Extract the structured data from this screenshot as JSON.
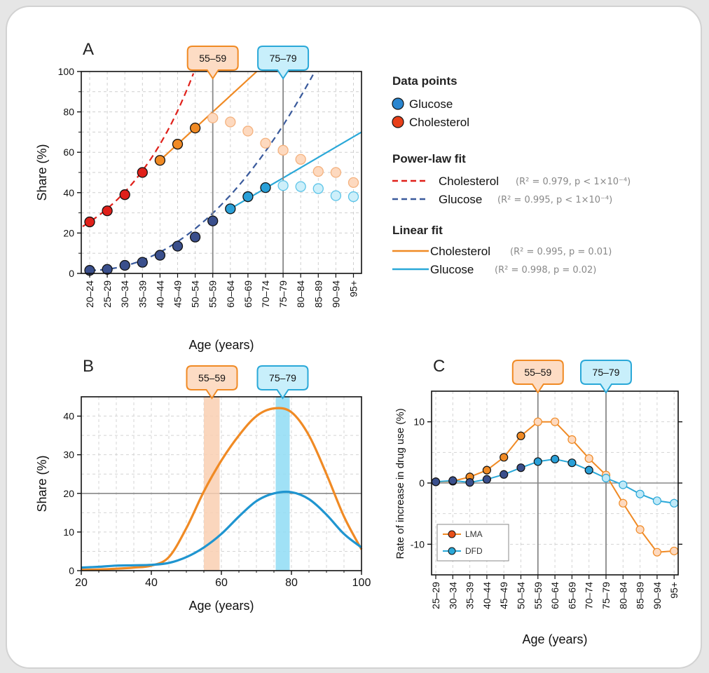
{
  "colors": {
    "glucose_dark": "#3a4f8c",
    "glucose_light": "#2aa8d8",
    "cholesterol_red": "#e0201a",
    "cholesterol_orange": "#f08a24",
    "callout_orange_fill": "#fddcc4",
    "callout_orange_stroke": "#f08a24",
    "callout_blue_fill": "#c8effb",
    "callout_blue_stroke": "#2aa8d8"
  },
  "legend": {
    "data_points_title": "Data points",
    "glucose": "Glucose",
    "cholesterol": "Cholesterol",
    "power_title": "Power-law fit",
    "linear_title": "Linear fit",
    "power_chol_stat": "(R² = 0.979, p < 1×10⁻⁴)",
    "power_gluc_stat": "(R² = 0.995, p < 1×10⁻⁴)",
    "linear_chol_stat": "(R² = 0.995, p = 0.01)",
    "linear_gluc_stat": "(R² = 0.998, p = 0.02)"
  },
  "chart_data": [
    {
      "panel": "A",
      "type": "scatter",
      "xlabel": "Age (years)",
      "ylabel": "Share (%)",
      "ylim": [
        0,
        100
      ],
      "yticks": [
        0,
        20,
        40,
        60,
        80,
        100
      ],
      "categories": [
        "20–24",
        "25–29",
        "30–34",
        "35–39",
        "40–44",
        "45–49",
        "50–54",
        "55–59",
        "60–64",
        "65–69",
        "70–74",
        "75–79",
        "80–84",
        "85–89",
        "90–94",
        "95+"
      ],
      "callouts": [
        "55–59",
        "75–79"
      ],
      "series": [
        {
          "name": "Cholesterol",
          "values": [
            25.5,
            31,
            39,
            50,
            56,
            64,
            72,
            77,
            75,
            70.5,
            64.5,
            61,
            56.5,
            50.5,
            50,
            45
          ]
        },
        {
          "name": "Glucose",
          "values": [
            1.5,
            2,
            4,
            5.5,
            9,
            13.5,
            18,
            26,
            32,
            38,
            42.5,
            43.5,
            43,
            42,
            38.5,
            38
          ]
        }
      ],
      "grid": true
    },
    {
      "panel": "B",
      "type": "line",
      "xlabel": "Age (years)",
      "ylabel": "Share (%)",
      "xlim": [
        20,
        100
      ],
      "ylim": [
        0,
        45
      ],
      "xticks": [
        20,
        40,
        60,
        80,
        100
      ],
      "yticks": [
        0,
        10,
        20,
        30,
        40
      ],
      "callouts": [
        "55–59",
        "75–79"
      ],
      "x": [
        20,
        25,
        30,
        35,
        40,
        45,
        50,
        55,
        60,
        65,
        70,
        75,
        80,
        85,
        90,
        95,
        100
      ],
      "series": [
        {
          "values": [
            0.2,
            0.3,
            0.5,
            0.8,
            1.3,
            3.5,
            11,
            20.5,
            28.5,
            35,
            40,
            42,
            41,
            35,
            25,
            14,
            5.5
          ]
        },
        {
          "values": [
            0.8,
            1,
            1.3,
            1.4,
            1.5,
            2,
            3.5,
            6,
            9.5,
            14,
            18,
            20,
            20.3,
            18.5,
            14.5,
            9.5,
            6
          ]
        }
      ],
      "grid": true
    },
    {
      "panel": "C",
      "type": "line",
      "xlabel": "Age (years)",
      "ylabel": "Rate of increase in drug use (%)",
      "ylim": [
        -15,
        15
      ],
      "yticks": [
        -10,
        0,
        10
      ],
      "categories": [
        "25–29",
        "30–34",
        "35–39",
        "40–44",
        "45–49",
        "50–54",
        "55–59",
        "60–64",
        "65–69",
        "70–74",
        "75–79",
        "80–84",
        "85–89",
        "90–94",
        "95+"
      ],
      "callouts": [
        "55–59",
        "75–79"
      ],
      "series": [
        {
          "name": "LMA",
          "values": [
            0.2,
            0.3,
            1,
            2.1,
            4.2,
            7.7,
            10,
            10,
            7.1,
            4,
            1.3,
            -3.3,
            -7.6,
            -11.3,
            -11.1
          ]
        },
        {
          "name": "DFD",
          "values": [
            0.2,
            0.4,
            0.1,
            0.6,
            1.4,
            2.5,
            3.5,
            3.9,
            3.3,
            2.1,
            0.8,
            -0.3,
            -1.8,
            -2.9,
            -3.3
          ]
        }
      ],
      "legend_position": "bottom-left",
      "grid": true
    }
  ]
}
